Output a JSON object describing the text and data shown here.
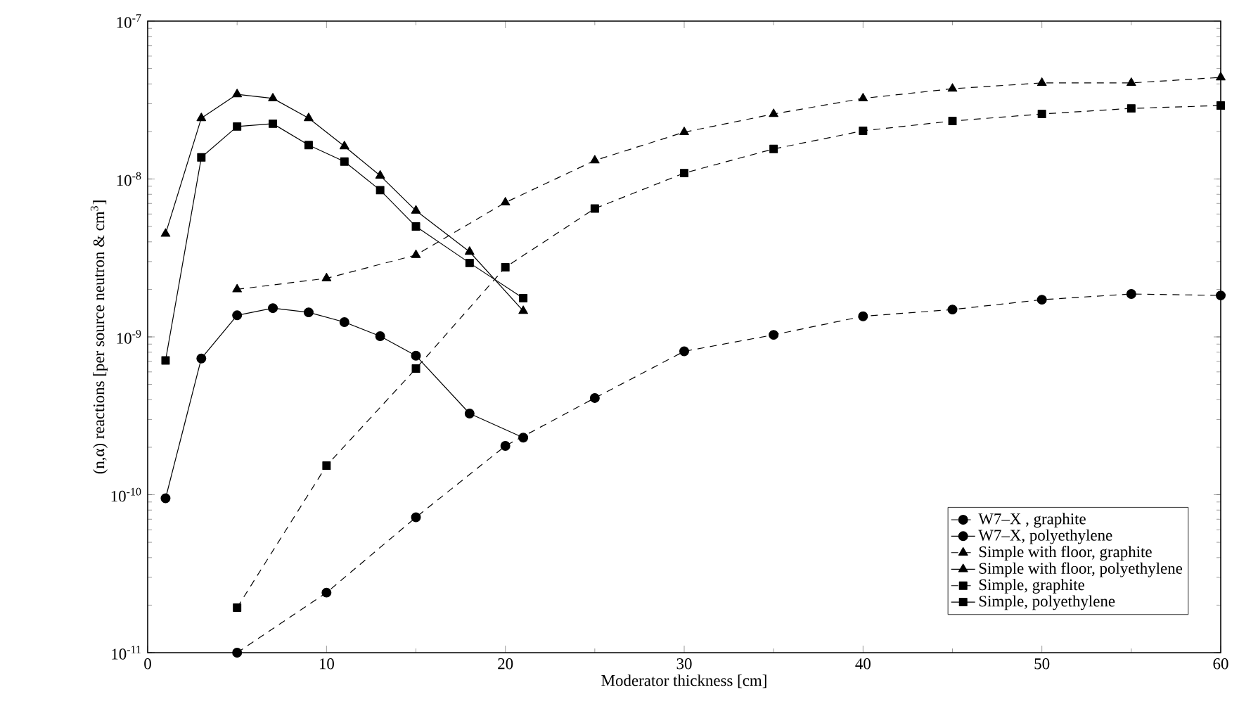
{
  "chart_data": {
    "type": "line",
    "xlabel": "Moderator thickness [cm]",
    "ylabel": "(n,α) reactions [per source neutron & cm$^{3}$]",
    "log": "y",
    "xlim": [
      0,
      60
    ],
    "xticks": [
      0,
      10,
      20,
      30,
      40,
      50,
      60
    ],
    "ylim": [
      1e-11,
      1e-07
    ],
    "yticks": [
      {
        "value": 1e-11,
        "label": "10$^{-11}$"
      },
      {
        "value": 1e-10,
        "label": "10$^{-10}$"
      },
      {
        "value": 1e-09,
        "label": "10$^{-9}$"
      },
      {
        "value": 1e-08,
        "label": "10$^{-8}$"
      },
      {
        "value": 1e-07,
        "label": "10$^{-7}$"
      }
    ],
    "grid": false,
    "legend": "bottom right",
    "series": [
      {
        "name": "W7–X , graphite",
        "color": "#000000",
        "marker": "circle",
        "line_style": "dashed",
        "x": [
          5,
          10,
          15,
          20,
          25,
          30,
          35,
          40,
          45,
          50,
          55,
          60
        ],
        "values": [
          1e-11,
          2.4e-11,
          7.2e-11,
          2.04e-10,
          4.1e-10,
          8.1e-10,
          1.03e-09,
          1.35e-09,
          1.49e-09,
          1.72e-09,
          1.87e-09,
          1.83e-09
        ]
      },
      {
        "name": "W7–X, polyethylene",
        "color": "#000000",
        "marker": "circle",
        "line_style": "solid",
        "x": [
          1,
          3,
          5,
          7,
          9,
          11,
          13,
          15,
          18,
          21
        ],
        "values": [
          9.5e-11,
          7.3e-10,
          1.37e-09,
          1.52e-09,
          1.43e-09,
          1.24e-09,
          1.01e-09,
          7.6e-10,
          3.27e-10,
          2.3e-10
        ]
      },
      {
        "name": "Simple with floor, graphite",
        "color": "#000000",
        "marker": "triangle",
        "line_style": "dashed",
        "x": [
          5,
          10,
          15,
          20,
          25,
          30,
          35,
          40,
          45,
          50,
          55,
          60
        ],
        "values": [
          2e-09,
          2.35e-09,
          3.3e-09,
          7.1e-09,
          1.31e-08,
          1.98e-08,
          2.58e-08,
          3.24e-08,
          3.73e-08,
          4.06e-08,
          4.06e-08,
          4.4e-08
        ]
      },
      {
        "name": "Simple with floor, polyethylene",
        "color": "#000000",
        "marker": "triangle",
        "line_style": "solid",
        "x": [
          1,
          3,
          5,
          7,
          9,
          11,
          13,
          15,
          18,
          21
        ],
        "values": [
          4.5e-09,
          2.43e-08,
          3.44e-08,
          3.24e-08,
          2.43e-08,
          1.61e-08,
          1.05e-08,
          6.3e-09,
          3.46e-09,
          1.46e-09
        ]
      },
      {
        "name": "Simple, graphite",
        "color": "#000000",
        "marker": "square",
        "line_style": "dashed",
        "x": [
          5,
          10,
          15,
          20,
          25,
          30,
          35,
          40,
          45,
          50,
          55,
          60
        ],
        "values": [
          1.93e-11,
          1.53e-10,
          6.3e-10,
          2.76e-09,
          6.5e-09,
          1.09e-08,
          1.55e-08,
          2.02e-08,
          2.33e-08,
          2.58e-08,
          2.8e-08,
          2.92e-08
        ]
      },
      {
        "name": "Simple, polyethylene",
        "color": "#000000",
        "marker": "square",
        "line_style": "solid",
        "x": [
          1,
          3,
          5,
          7,
          9,
          11,
          13,
          15,
          18,
          21
        ],
        "values": [
          7.1e-10,
          1.37e-08,
          2.15e-08,
          2.24e-08,
          1.64e-08,
          1.29e-08,
          8.5e-09,
          5e-09,
          2.94e-09,
          1.76e-09
        ]
      }
    ]
  }
}
